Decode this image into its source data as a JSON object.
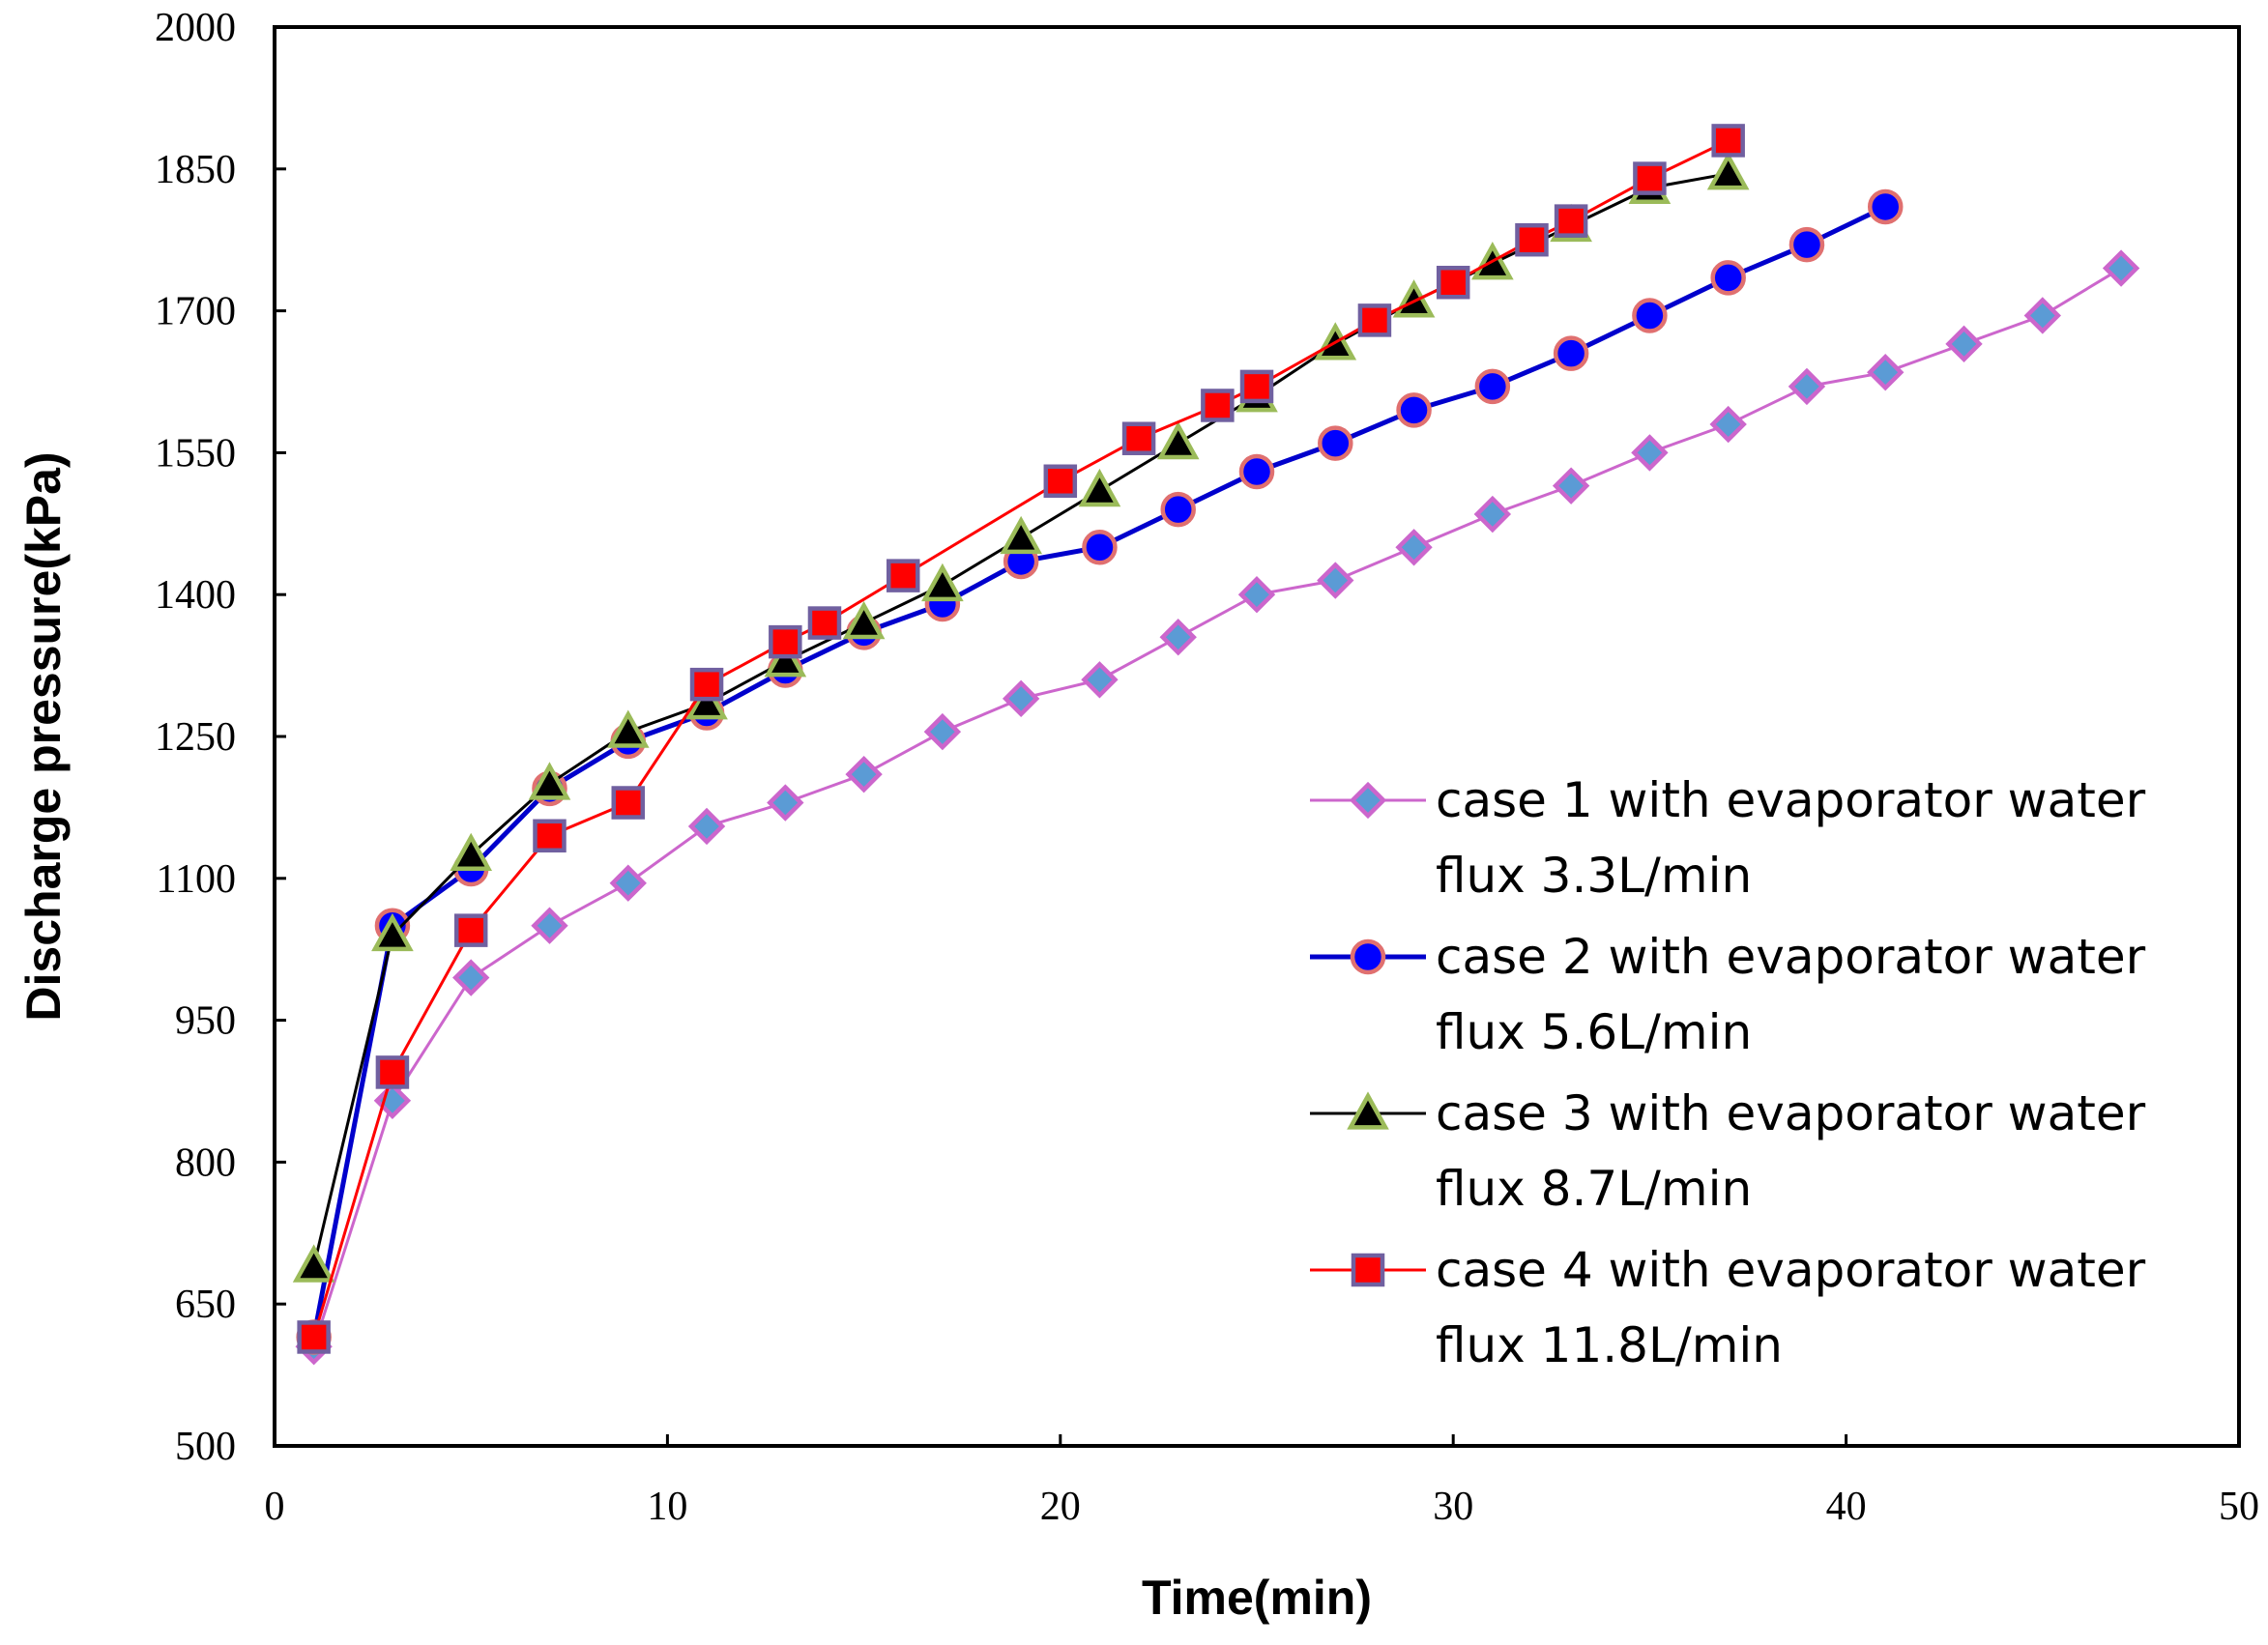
{
  "chart_data": {
    "type": "line",
    "title": "",
    "xlabel": "Time(min)",
    "ylabel": "Discharge pressure(kPa)",
    "xlim": [
      0,
      50
    ],
    "ylim": [
      500,
      2000
    ],
    "xticks": [
      0,
      10,
      20,
      30,
      40,
      50
    ],
    "yticks": [
      500,
      650,
      800,
      950,
      1100,
      1250,
      1400,
      1550,
      1700,
      1850,
      2000
    ],
    "grid": false,
    "legend_position": "right",
    "series": [
      {
        "name": "case 1 with evaporator water flux 3.3L/min",
        "legend_lines": [
          "case 1 with evaporator water",
          "flux 3.3L/min"
        ],
        "marker": "diamond",
        "line_color": "#CC66CC",
        "marker_fill": "#5B9BD5",
        "marker_edge": "#CC66CC",
        "x": [
          1,
          3,
          5,
          7,
          9,
          11,
          13,
          15,
          17,
          19,
          21,
          23,
          25,
          27,
          29,
          31,
          33,
          35,
          37,
          39,
          41,
          43,
          45,
          47
        ],
        "y": [
          605,
          865,
          995,
          1050,
          1095,
          1155,
          1180,
          1210,
          1255,
          1290,
          1310,
          1355,
          1400,
          1415,
          1450,
          1485,
          1515,
          1550,
          1580,
          1620,
          1635,
          1665,
          1695,
          1745
        ]
      },
      {
        "name": "case 2 with evaporator water flux 5.6L/min",
        "legend_lines": [
          "case 2 with evaporator water",
          "flux 5.6L/min"
        ],
        "marker": "circle",
        "line_color": "#0000CC",
        "marker_fill": "#0000FF",
        "marker_edge": "#E07070",
        "x": [
          1,
          3,
          5,
          7,
          9,
          11,
          13,
          15,
          17,
          19,
          21,
          23,
          25,
          27,
          29,
          31,
          33,
          35,
          37,
          39,
          41
        ],
        "y": [
          615,
          1050,
          1110,
          1195,
          1245,
          1275,
          1320,
          1360,
          1390,
          1435,
          1450,
          1490,
          1530,
          1560,
          1595,
          1620,
          1655,
          1695,
          1735,
          1770,
          1810
        ]
      },
      {
        "name": "case 3 with evaporator water flux 8.7L/min",
        "legend_lines": [
          "case 3 with evaporator water",
          "flux 8.7L/min"
        ],
        "marker": "triangle",
        "line_color": "#000000",
        "marker_fill": "#000000",
        "marker_edge": "#9BBB59",
        "x": [
          1,
          3,
          5,
          7,
          9,
          11,
          13,
          15,
          17,
          19,
          21,
          23,
          25,
          27,
          29,
          31,
          33,
          35,
          37
        ],
        "y": [
          690,
          1040,
          1125,
          1200,
          1255,
          1285,
          1330,
          1370,
          1410,
          1460,
          1510,
          1560,
          1610,
          1665,
          1710,
          1750,
          1790,
          1830,
          1845
        ]
      },
      {
        "name": "case 4 with evaporator water flux 11.8L/min",
        "legend_lines": [
          "case 4 with evaporator water",
          "flux 11.8L/min"
        ],
        "marker": "square",
        "line_color": "#FF0000",
        "marker_fill": "#FF0000",
        "marker_edge": "#7060A0",
        "x": [
          1,
          3,
          5,
          7,
          9,
          11,
          13,
          14,
          16,
          20,
          22,
          24,
          25,
          28,
          30,
          32,
          33,
          35,
          37
        ],
        "y": [
          615,
          895,
          1045,
          1145,
          1180,
          1305,
          1350,
          1370,
          1420,
          1520,
          1565,
          1600,
          1620,
          1690,
          1730,
          1775,
          1795,
          1840,
          1880
        ]
      }
    ]
  }
}
